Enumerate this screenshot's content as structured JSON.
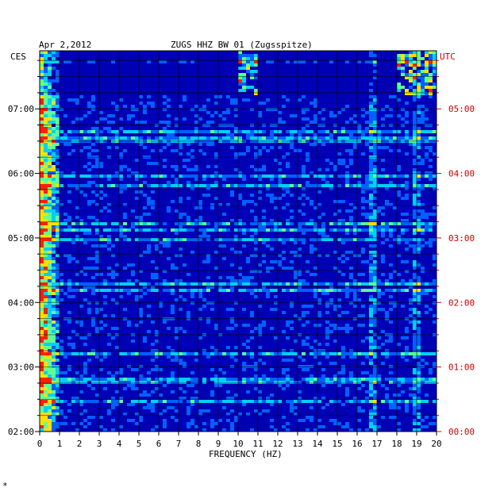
{
  "header": {
    "date": "Apr 2,2012",
    "station": "ZUGS HHZ BW 01 (Zugsspitze)",
    "left_tz": "CES",
    "right_tz": "UTC"
  },
  "footer_mark": "*",
  "colors": {
    "background": "#0000b4",
    "grid": "#000000",
    "utc_text": "#cc0000",
    "local_text": "#000000"
  },
  "chart_data": {
    "type": "heatmap",
    "title": "ZUGS HHZ BW 01 (Zugsspitze)",
    "date": "Apr 2,2012",
    "xlabel": "FREQUENCY (HZ)",
    "xlim": [
      0,
      20
    ],
    "x_ticks": [
      "0",
      "1",
      "2",
      "3",
      "4",
      "5",
      "6",
      "7",
      "8",
      "9",
      "10",
      "11",
      "12",
      "13",
      "14",
      "15",
      "16",
      "17",
      "18",
      "19",
      "20"
    ],
    "y_ticks_local": [
      "07:00",
      "06:00",
      "05:00",
      "04:00",
      "03:00",
      "02:00"
    ],
    "y_ticks_utc": [
      "05:00",
      "04:00",
      "03:00",
      "02:00",
      "01:00",
      "00:00"
    ],
    "y_tick_hours_local": [
      7,
      6,
      5,
      4,
      3,
      2
    ],
    "ylim_local_hours": [
      2,
      7.9
    ],
    "color_scale": [
      "#00008c",
      "#0000d8",
      "#0060ff",
      "#00d0ff",
      "#60ff90",
      "#ffe000",
      "#ff2000"
    ],
    "grid": true
  }
}
